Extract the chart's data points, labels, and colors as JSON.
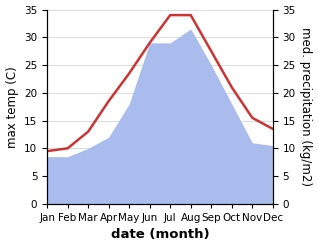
{
  "months": [
    "Jan",
    "Feb",
    "Mar",
    "Apr",
    "May",
    "Jun",
    "Jul",
    "Aug",
    "Sep",
    "Oct",
    "Nov",
    "Dec"
  ],
  "temperature": [
    9.5,
    10.0,
    13.0,
    18.5,
    23.5,
    29.0,
    34.0,
    34.0,
    27.5,
    21.0,
    15.5,
    13.5
  ],
  "precipitation": [
    8.5,
    8.5,
    10.0,
    12.0,
    18.0,
    29.0,
    29.0,
    31.5,
    25.0,
    18.0,
    11.0,
    10.5
  ],
  "temp_color": "#cc3333",
  "precip_color": "#aabbee",
  "ylim_left": [
    0,
    35
  ],
  "ylim_right": [
    0,
    35
  ],
  "yticks": [
    0,
    5,
    10,
    15,
    20,
    25,
    30,
    35
  ],
  "ylabel_left": "max temp (C)",
  "ylabel_right": "med. precipitation (kg/m2)",
  "xlabel": "date (month)",
  "bg_color": "#ffffff",
  "grid_color": "#cccccc",
  "tick_fontsize": 7.5,
  "label_fontsize": 8.5,
  "xlabel_fontsize": 9.5
}
